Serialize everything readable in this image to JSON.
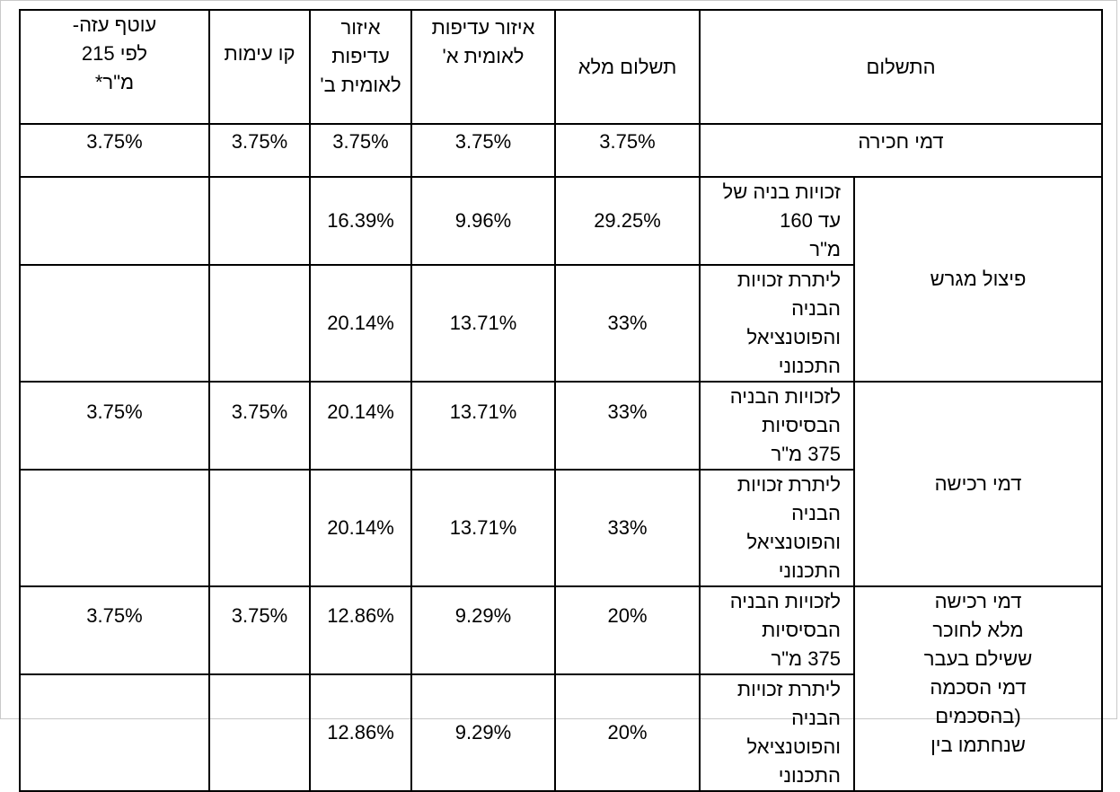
{
  "headers": {
    "payment": "התשלום",
    "full": "תשלום מלא",
    "area_a": "איזור עדיפות\nלאומית א'",
    "area_b": "איזור עדיפות\nלאומית ב'",
    "confrontation": "קו עימות",
    "envelope": "עוטף עזה-\nלפי 215\nמ\"ר*"
  },
  "sale": {
    "label": "דמי חכירה",
    "values": [
      "3.75%",
      "3.75%",
      "3.75%",
      "3.75%",
      "3.75%"
    ]
  },
  "groups": [
    {
      "label": "פיצול מגרש",
      "rows": [
        {
          "label": "זכויות בניה של עד 160\nמ\"ר",
          "values": [
            "29.25%",
            "9.96%",
            "16.39%",
            "",
            ""
          ]
        },
        {
          "label": "ליתרת זכויות הבניה\nוהפוטנציאל התכנוני",
          "values": [
            "33%",
            "13.71%",
            "20.14%",
            "",
            ""
          ]
        }
      ]
    },
    {
      "label": "דמי רכישה",
      "rows": [
        {
          "label": "לזכויות הבניה הבסיסיות\n375 מ\"ר",
          "values": [
            "33%",
            "13.71%",
            "20.14%",
            "3.75%",
            "3.75%"
          ]
        },
        {
          "label": "ליתרת זכויות הבניה\nוהפוטנציאל התכנוני",
          "values": [
            "33%",
            "13.71%",
            "20.14%",
            "",
            ""
          ]
        }
      ]
    },
    {
      "label": "דמי רכישה\nמלא לחוכר\nששילם בעבר\nדמי הסכמה\n(בהסכמים\nשנחתמו בין",
      "rows": [
        {
          "label": "לזכויות הבניה הבסיסיות\n375 מ\"ר",
          "values": [
            "20%",
            "9.29%",
            "12.86%",
            "3.75%",
            "3.75%"
          ]
        },
        {
          "label": "ליתרת זכויות הבניה\nוהפוטנציאל התכנוני",
          "values": [
            "20%",
            "9.29%",
            "12.86%",
            "",
            ""
          ]
        }
      ]
    }
  ]
}
